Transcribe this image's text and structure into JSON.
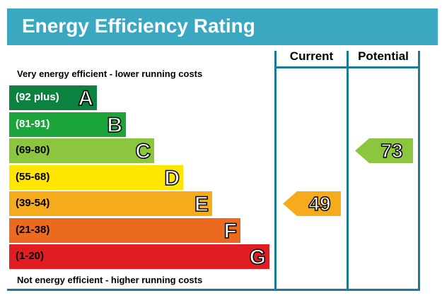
{
  "title": "Energy Efficiency Rating",
  "top_caption": "Very energy efficient - lower running costs",
  "bottom_caption": "Not energy efficient - higher running costs",
  "columns": {
    "current": "Current",
    "potential": "Potential"
  },
  "chart_data": {
    "type": "bar",
    "title": "Energy Efficiency Rating",
    "bands": [
      {
        "letter": "A",
        "range": "(92 plus)",
        "color": "#0c8240",
        "text_color": "#ffffff"
      },
      {
        "letter": "B",
        "range": "(81-91)",
        "color": "#1ba53a",
        "text_color": "#ffffff"
      },
      {
        "letter": "C",
        "range": "(69-80)",
        "color": "#8cc63f",
        "text_color": "#000000"
      },
      {
        "letter": "D",
        "range": "(55-68)",
        "color": "#ffe600",
        "text_color": "#000000"
      },
      {
        "letter": "E",
        "range": "(39-54)",
        "color": "#f5ab1c",
        "text_color": "#000000"
      },
      {
        "letter": "F",
        "range": "(21-38)",
        "color": "#ec6a1f",
        "text_color": "#000000"
      },
      {
        "letter": "G",
        "range": "(1-20)",
        "color": "#e11d24",
        "text_color": "#000000"
      }
    ],
    "current": {
      "value": 49,
      "band": "E",
      "color": "#f5ab1c"
    },
    "potential": {
      "value": 73,
      "band": "C",
      "color": "#8cc63f"
    }
  }
}
